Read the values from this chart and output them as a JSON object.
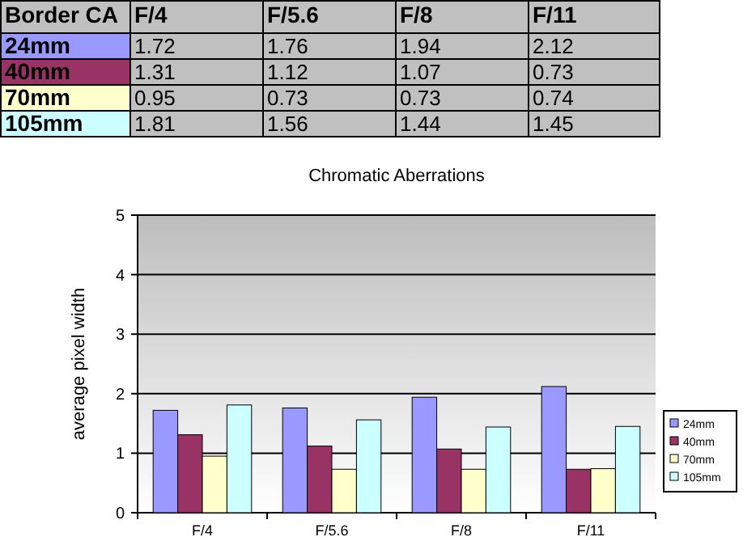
{
  "chart_data": {
    "type": "bar",
    "title": "Chromatic Aberrations",
    "ylabel": "average pixel width",
    "annotations": [
      "Border CA"
    ],
    "categories": [
      "F/4",
      "F/5.6",
      "F/8",
      "F/11"
    ],
    "series": [
      {
        "name": "24mm",
        "color": "#9999ff",
        "values": [
          1.72,
          1.76,
          1.94,
          2.12
        ]
      },
      {
        "name": "40mm",
        "color": "#993366",
        "values": [
          1.31,
          1.12,
          1.07,
          0.73
        ]
      },
      {
        "name": "70mm",
        "color": "#ffffcc",
        "values": [
          0.95,
          0.73,
          0.73,
          0.74
        ]
      },
      {
        "name": "105mm",
        "color": "#ccffff",
        "values": [
          1.81,
          1.56,
          1.44,
          1.45
        ]
      }
    ],
    "ylim": [
      0,
      5
    ],
    "yticks": [
      0,
      1,
      2,
      3,
      4,
      5
    ],
    "grid": "y",
    "legend": "right",
    "data_labels": true
  }
}
